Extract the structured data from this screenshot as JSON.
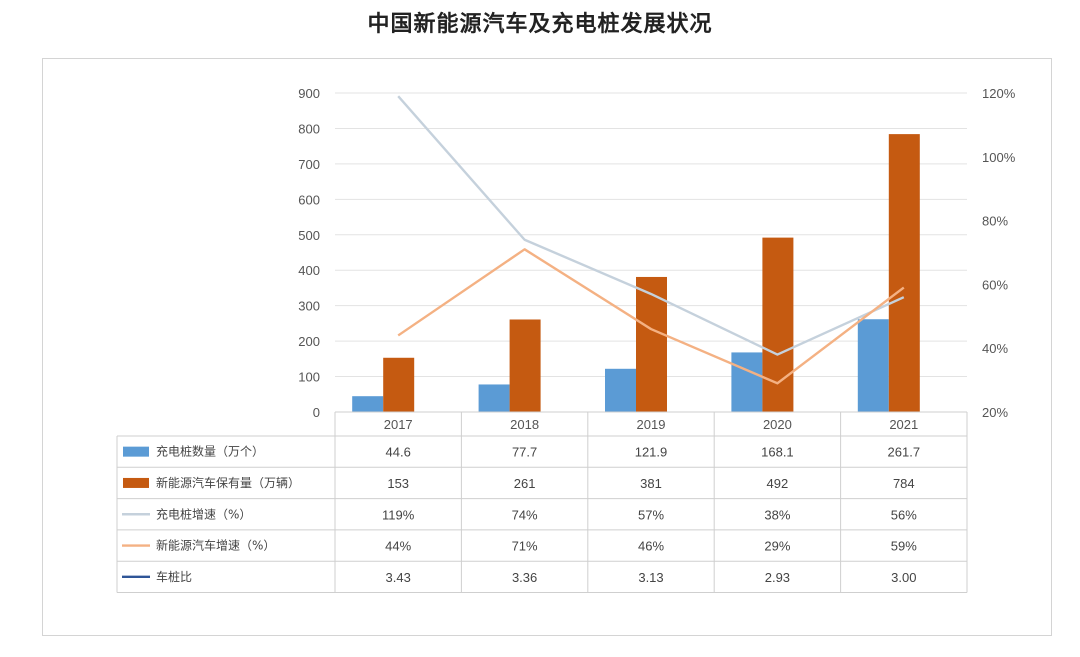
{
  "title": "中国新能源汽车及充电桩发展状况",
  "chart_data": {
    "type": "bar",
    "categories": [
      "2017",
      "2018",
      "2019",
      "2020",
      "2021"
    ],
    "series": [
      {
        "name": "充电桩数量（万个）",
        "kind": "bar",
        "axis": "left",
        "color": "#5b9bd5",
        "values": [
          44.6,
          77.7,
          121.9,
          168.1,
          261.7
        ],
        "labels": [
          "44.6",
          "77.7",
          "121.9",
          "168.1",
          "261.7"
        ]
      },
      {
        "name": "新能源汽车保有量（万辆）",
        "kind": "bar",
        "axis": "left",
        "color": "#c55a11",
        "values": [
          153,
          261,
          381,
          492,
          784
        ],
        "labels": [
          "153",
          "261",
          "381",
          "492",
          "784"
        ]
      },
      {
        "name": "充电桩增速（%）",
        "kind": "line",
        "axis": "right",
        "color": "#c5d1dc",
        "values": [
          119,
          74,
          57,
          38,
          56
        ],
        "labels": [
          "119%",
          "74%",
          "57%",
          "38%",
          "56%"
        ]
      },
      {
        "name": "新能源汽车增速（%）",
        "kind": "line",
        "axis": "right",
        "color": "#f4b183",
        "values": [
          44,
          71,
          46,
          29,
          59
        ],
        "labels": [
          "44%",
          "71%",
          "46%",
          "29%",
          "59%"
        ]
      },
      {
        "name": "车桩比",
        "kind": "table-only",
        "color": "#2f5597",
        "values": [
          3.43,
          3.36,
          3.13,
          2.93,
          3.0
        ],
        "labels": [
          "3.43",
          "3.36",
          "3.13",
          "2.93",
          "3.00"
        ]
      }
    ],
    "y_left": {
      "range": [
        0,
        900
      ],
      "ticks": [
        "0",
        "100",
        "200",
        "300",
        "400",
        "500",
        "600",
        "700",
        "800",
        "900"
      ]
    },
    "y_right": {
      "range": [
        20,
        120
      ],
      "ticks": [
        "20%",
        "40%",
        "60%",
        "80%",
        "100%",
        "120%"
      ]
    },
    "grid": true,
    "legend": "data-table"
  }
}
